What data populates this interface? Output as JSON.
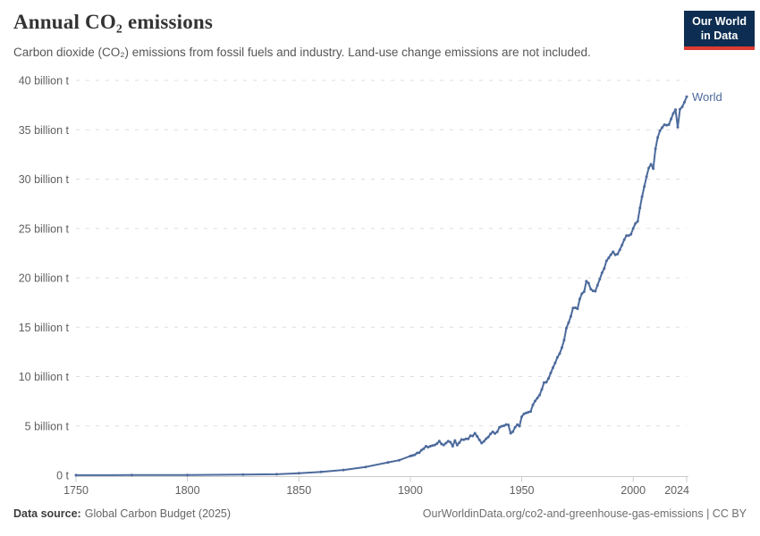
{
  "header": {
    "title": "Annual CO₂ emissions",
    "subtitle": "Carbon dioxide (CO₂) emissions from fossil fuels and industry. Land-use change emissions are not included.",
    "logo": {
      "line1": "Our World",
      "line2": "in Data",
      "bg_color": "#0d2d52",
      "accent_color": "#dc3b31"
    }
  },
  "footer": {
    "source_label": "Data source:",
    "source_value": "Global Carbon Budget (2025)",
    "right_text": "OurWorldinData.org/co2-and-greenhouse-gas-emissions | CC BY"
  },
  "chart_data": {
    "type": "line",
    "title": "Annual CO₂ emissions",
    "xlabel": "",
    "ylabel": "",
    "unit": "billion t",
    "xlim": [
      1750,
      2024
    ],
    "ylim": [
      0,
      40
    ],
    "grid": "horizontal-dashed",
    "grid_color": "#dddddd",
    "axis_color": "#cccccc",
    "xticks": [
      {
        "value": 1750,
        "label": "1750"
      },
      {
        "value": 1800,
        "label": "1800"
      },
      {
        "value": 1850,
        "label": "1850"
      },
      {
        "value": 1900,
        "label": "1900"
      },
      {
        "value": 1950,
        "label": "1950"
      },
      {
        "value": 2000,
        "label": "2000"
      },
      {
        "value": 2024,
        "label": "2024"
      }
    ],
    "yticks": [
      {
        "value": 0,
        "label": "0 t"
      },
      {
        "value": 5,
        "label": "5 billion t"
      },
      {
        "value": 10,
        "label": "10 billion t"
      },
      {
        "value": 15,
        "label": "15 billion t"
      },
      {
        "value": 20,
        "label": "20 billion t"
      },
      {
        "value": 25,
        "label": "25 billion t"
      },
      {
        "value": 30,
        "label": "30 billion t"
      },
      {
        "value": 35,
        "label": "35 billion t"
      },
      {
        "value": 40,
        "label": "40 billion t"
      }
    ],
    "series": [
      {
        "name": "World",
        "color": "#4C6A9C",
        "points": [
          [
            1750,
            0.01
          ],
          [
            1775,
            0.02
          ],
          [
            1800,
            0.03
          ],
          [
            1825,
            0.06
          ],
          [
            1840,
            0.1
          ],
          [
            1850,
            0.2
          ],
          [
            1860,
            0.34
          ],
          [
            1870,
            0.53
          ],
          [
            1880,
            0.84
          ],
          [
            1890,
            1.3
          ],
          [
            1895,
            1.52
          ],
          [
            1900,
            1.95
          ],
          [
            1901,
            2.0
          ],
          [
            1902,
            2.07
          ],
          [
            1903,
            2.25
          ],
          [
            1904,
            2.28
          ],
          [
            1905,
            2.54
          ],
          [
            1906,
            2.7
          ],
          [
            1907,
            2.94
          ],
          [
            1908,
            2.84
          ],
          [
            1909,
            2.94
          ],
          [
            1910,
            3.01
          ],
          [
            1911,
            3.07
          ],
          [
            1912,
            3.21
          ],
          [
            1913,
            3.46
          ],
          [
            1914,
            3.17
          ],
          [
            1915,
            3.07
          ],
          [
            1916,
            3.26
          ],
          [
            1917,
            3.45
          ],
          [
            1918,
            3.35
          ],
          [
            1919,
            2.94
          ],
          [
            1920,
            3.52
          ],
          [
            1921,
            3.06
          ],
          [
            1922,
            3.3
          ],
          [
            1923,
            3.62
          ],
          [
            1924,
            3.6
          ],
          [
            1925,
            3.69
          ],
          [
            1926,
            3.69
          ],
          [
            1927,
            4.0
          ],
          [
            1928,
            3.98
          ],
          [
            1929,
            4.25
          ],
          [
            1930,
            3.94
          ],
          [
            1931,
            3.58
          ],
          [
            1932,
            3.26
          ],
          [
            1933,
            3.43
          ],
          [
            1934,
            3.7
          ],
          [
            1935,
            3.87
          ],
          [
            1936,
            4.18
          ],
          [
            1937,
            4.4
          ],
          [
            1938,
            4.23
          ],
          [
            1939,
            4.4
          ],
          [
            1940,
            4.85
          ],
          [
            1941,
            4.97
          ],
          [
            1942,
            5.01
          ],
          [
            1943,
            5.14
          ],
          [
            1944,
            5.1
          ],
          [
            1945,
            4.25
          ],
          [
            1946,
            4.42
          ],
          [
            1947,
            4.86
          ],
          [
            1948,
            5.12
          ],
          [
            1949,
            4.98
          ],
          [
            1950,
            5.93
          ],
          [
            1951,
            6.22
          ],
          [
            1952,
            6.31
          ],
          [
            1953,
            6.39
          ],
          [
            1954,
            6.46
          ],
          [
            1955,
            7.12
          ],
          [
            1956,
            7.52
          ],
          [
            1957,
            7.82
          ],
          [
            1958,
            8.13
          ],
          [
            1959,
            8.7
          ],
          [
            1960,
            9.39
          ],
          [
            1961,
            9.42
          ],
          [
            1962,
            9.81
          ],
          [
            1963,
            10.35
          ],
          [
            1964,
            10.9
          ],
          [
            1965,
            11.38
          ],
          [
            1966,
            11.95
          ],
          [
            1967,
            12.32
          ],
          [
            1968,
            12.92
          ],
          [
            1969,
            13.68
          ],
          [
            1970,
            14.9
          ],
          [
            1971,
            15.46
          ],
          [
            1972,
            16.08
          ],
          [
            1973,
            16.94
          ],
          [
            1974,
            16.97
          ],
          [
            1975,
            16.87
          ],
          [
            1976,
            17.85
          ],
          [
            1977,
            18.4
          ],
          [
            1978,
            18.6
          ],
          [
            1979,
            19.66
          ],
          [
            1980,
            19.46
          ],
          [
            1981,
            18.84
          ],
          [
            1982,
            18.68
          ],
          [
            1983,
            18.64
          ],
          [
            1984,
            19.26
          ],
          [
            1985,
            19.86
          ],
          [
            1986,
            20.51
          ],
          [
            1987,
            20.95
          ],
          [
            1988,
            21.72
          ],
          [
            1989,
            22.03
          ],
          [
            1990,
            22.34
          ],
          [
            1991,
            22.63
          ],
          [
            1992,
            22.33
          ],
          [
            1993,
            22.41
          ],
          [
            1994,
            22.84
          ],
          [
            1995,
            23.32
          ],
          [
            1996,
            23.87
          ],
          [
            1997,
            24.28
          ],
          [
            1998,
            24.28
          ],
          [
            1999,
            24.42
          ],
          [
            2000,
            25.01
          ],
          [
            2001,
            25.51
          ],
          [
            2002,
            25.71
          ],
          [
            2003,
            27.07
          ],
          [
            2004,
            28.23
          ],
          [
            2005,
            29.24
          ],
          [
            2006,
            30.25
          ],
          [
            2007,
            31.13
          ],
          [
            2008,
            31.5
          ],
          [
            2009,
            31.07
          ],
          [
            2010,
            33.07
          ],
          [
            2011,
            34.22
          ],
          [
            2012,
            34.9
          ],
          [
            2013,
            35.22
          ],
          [
            2014,
            35.51
          ],
          [
            2015,
            35.47
          ],
          [
            2016,
            35.52
          ],
          [
            2017,
            36.1
          ],
          [
            2018,
            36.65
          ],
          [
            2019,
            37.04
          ],
          [
            2020,
            35.26
          ],
          [
            2021,
            37.08
          ],
          [
            2022,
            37.32
          ],
          [
            2023,
            37.79
          ],
          [
            2024,
            38.34
          ]
        ]
      }
    ]
  }
}
